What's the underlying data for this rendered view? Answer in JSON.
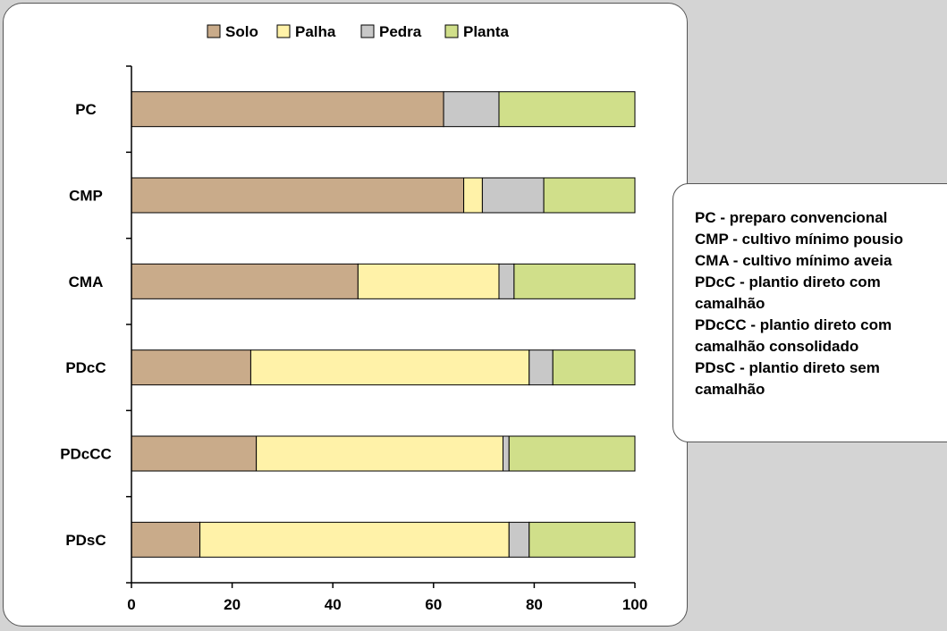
{
  "chart_data": {
    "type": "bar",
    "orientation": "horizontal",
    "stacked": true,
    "categories": [
      "PC",
      "CMP",
      "CMA",
      "PDcC",
      "PDcCC",
      "PDsC"
    ],
    "series": [
      {
        "name": "Solo",
        "color": "#c9ab8a",
        "values": [
          62,
          66,
          45,
          23.7,
          24.8,
          13.6
        ]
      },
      {
        "name": "Palha",
        "color": "#fff2a8",
        "values": [
          0,
          3.7,
          28,
          55.3,
          49,
          61.4
        ]
      },
      {
        "name": "Pedra",
        "color": "#c8c8c8",
        "values": [
          11,
          12.2,
          3,
          4.7,
          1.2,
          4
        ]
      },
      {
        "name": "Planta",
        "color": "#d0df8a",
        "values": [
          27,
          18.1,
          24,
          16.3,
          25,
          21
        ]
      }
    ],
    "xlim": [
      0,
      100
    ],
    "xticks": [
      0,
      20,
      40,
      60,
      80,
      100
    ],
    "legend_position": "top",
    "grid": false
  },
  "annotation": {
    "lines": [
      "PC - preparo convencional",
      "CMP - cultivo mínimo pousio",
      "CMA - cultivo mínimo aveia",
      "PDcC - plantio direto com",
      "camalhão",
      "PDcCC - plantio direto com",
      "camalhão consolidado",
      "PDsC - plantio direto sem",
      "camalhão"
    ]
  }
}
